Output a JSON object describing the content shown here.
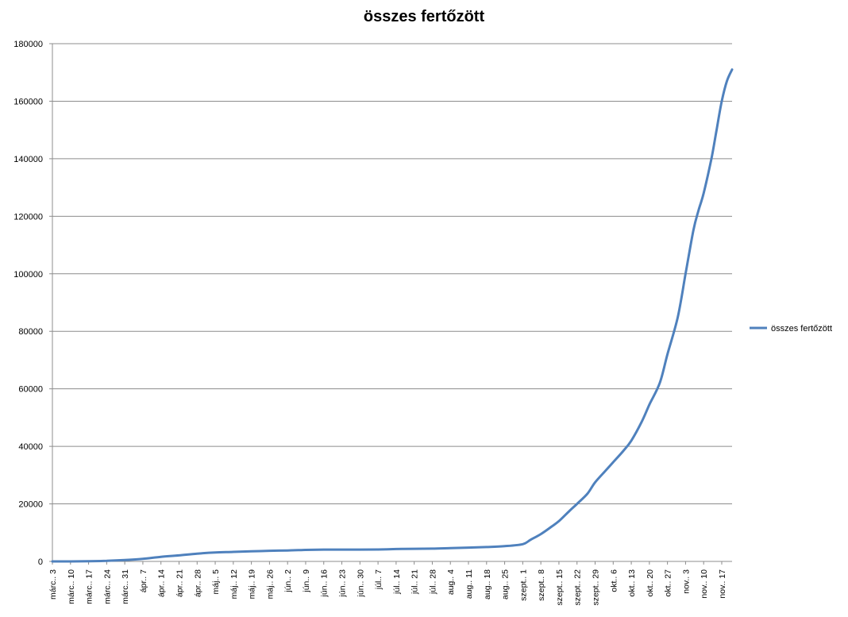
{
  "chart_data": {
    "type": "line",
    "title": "összes fertőzött",
    "xlabel": "",
    "ylabel": "",
    "ylim": [
      0,
      180000
    ],
    "yticks": [
      0,
      20000,
      40000,
      60000,
      80000,
      100000,
      120000,
      140000,
      160000,
      180000
    ],
    "grid": true,
    "legend_position": "right",
    "x_tick_labels": [
      "márc.. 3",
      "márc.. 10",
      "márc.. 17",
      "márc.. 24",
      "márc.. 31",
      "ápr.. 7",
      "ápr.. 14",
      "ápr.. 21",
      "ápr.. 28",
      "máj.. 5",
      "máj.. 12",
      "máj.. 19",
      "máj.. 26",
      "jún.. 2",
      "jún.. 9",
      "jún.. 16",
      "jún.. 23",
      "jún.. 30",
      "júl.. 7",
      "júl.. 14",
      "júl.. 21",
      "júl.. 28",
      "aug.. 4",
      "aug.. 11",
      "aug.. 18",
      "aug.. 25",
      "szept.. 1",
      "szept.. 8",
      "szept.. 15",
      "szept.. 22",
      "szept.. 29",
      "okt.. 6",
      "okt.. 13",
      "okt.. 20",
      "okt.. 27",
      "nov.. 3",
      "nov.. 10",
      "nov.. 17"
    ],
    "series": [
      {
        "name": "összes fertőzött",
        "color": "#4f81bd",
        "x": [
          "2020-03-03",
          "2020-03-10",
          "2020-03-17",
          "2020-03-24",
          "2020-03-31",
          "2020-04-07",
          "2020-04-14",
          "2020-04-21",
          "2020-04-28",
          "2020-05-05",
          "2020-05-12",
          "2020-05-19",
          "2020-05-26",
          "2020-06-02",
          "2020-06-09",
          "2020-06-16",
          "2020-06-23",
          "2020-06-30",
          "2020-07-07",
          "2020-07-14",
          "2020-07-21",
          "2020-07-28",
          "2020-08-04",
          "2020-08-11",
          "2020-08-18",
          "2020-08-25",
          "2020-09-01",
          "2020-09-04",
          "2020-09-08",
          "2020-09-12",
          "2020-09-15",
          "2020-09-19",
          "2020-09-22",
          "2020-09-26",
          "2020-09-29",
          "2020-10-03",
          "2020-10-06",
          "2020-10-10",
          "2020-10-13",
          "2020-10-17",
          "2020-10-20",
          "2020-10-24",
          "2020-10-27",
          "2020-10-31",
          "2020-11-03",
          "2020-11-06",
          "2020-11-08",
          "2020-11-10",
          "2020-11-13",
          "2020-11-15",
          "2020-11-17",
          "2020-11-19",
          "2020-11-21"
        ],
        "values": [
          0,
          10,
          50,
          200,
          500,
          900,
          1600,
          2100,
          2700,
          3100,
          3300,
          3500,
          3700,
          3800,
          4000,
          4100,
          4100,
          4100,
          4150,
          4300,
          4400,
          4450,
          4600,
          4800,
          5000,
          5300,
          6000,
          7500,
          9500,
          12000,
          14000,
          17500,
          20000,
          23500,
          27500,
          31500,
          34500,
          38500,
          42000,
          48500,
          54500,
          62000,
          72000,
          85000,
          100000,
          115000,
          122000,
          128000,
          140000,
          150000,
          160000,
          167000,
          171000
        ]
      }
    ]
  }
}
